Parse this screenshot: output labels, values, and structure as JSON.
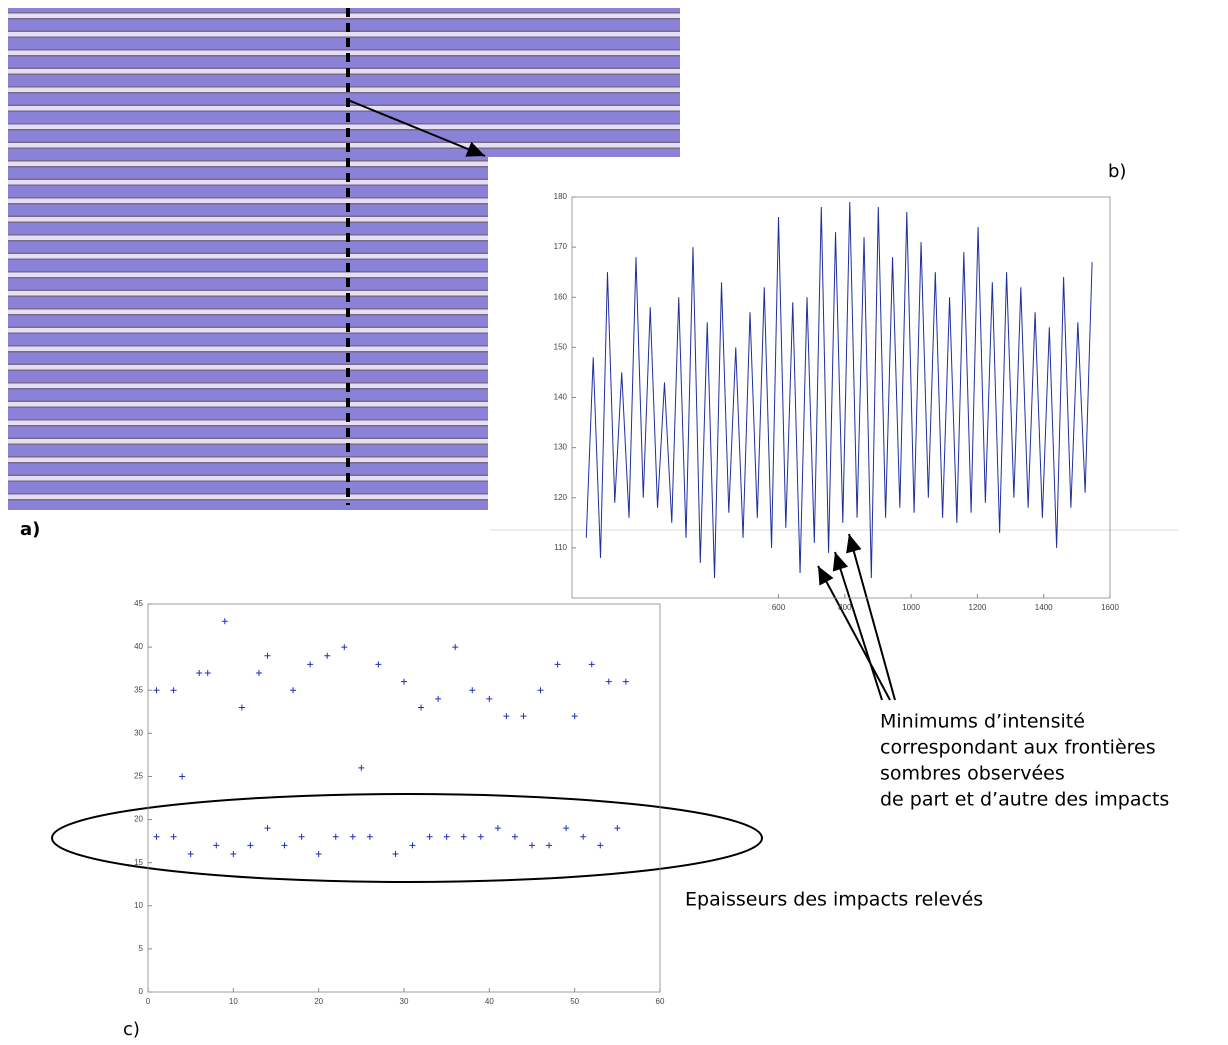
{
  "image": {
    "label": "a)"
  },
  "chart_data": [
    {
      "type": "line",
      "panel_label": "b)",
      "annotation": [
        "Minimums d’intensité",
        "correspondant aux frontières",
        "sombres observées",
        "de part et d’autre des impacts"
      ],
      "x": [
        20,
        41,
        63,
        84,
        106,
        127,
        149,
        170,
        192,
        213,
        235,
        256,
        278,
        299,
        321,
        342,
        364,
        385,
        407,
        428,
        450,
        471,
        493,
        514,
        536,
        557,
        579,
        600,
        622,
        643,
        665,
        686,
        708,
        729,
        751,
        772,
        794,
        815,
        837,
        858,
        880,
        901,
        923,
        944,
        966,
        987,
        1009,
        1030,
        1052,
        1073,
        1095,
        1116,
        1138,
        1159,
        1181,
        1202,
        1224,
        1245,
        1267,
        1288,
        1310,
        1331,
        1353,
        1374,
        1396,
        1417,
        1439,
        1460,
        1482,
        1503,
        1525,
        1546
      ],
      "values": [
        112,
        148,
        108,
        165,
        119,
        145,
        116,
        168,
        120,
        158,
        118,
        143,
        115,
        160,
        112,
        170,
        107,
        155,
        104,
        163,
        117,
        150,
        112,
        157,
        116,
        162,
        110,
        176,
        114,
        159,
        105,
        160,
        111,
        178,
        109,
        173,
        115,
        179,
        116,
        172,
        104,
        178,
        116,
        168,
        118,
        177,
        117,
        171,
        120,
        165,
        116,
        160,
        115,
        169,
        117,
        174,
        119,
        163,
        113,
        165,
        120,
        162,
        118,
        157,
        116,
        154,
        110,
        164,
        118,
        155,
        121,
        167
      ],
      "color": "#1f2f9e",
      "xlim": [
        -23,
        1600
      ],
      "ylim": [
        100,
        180
      ],
      "xticks": [
        600,
        800,
        1000,
        1200,
        1400,
        1600
      ],
      "yticks": [
        110,
        120,
        130,
        140,
        150,
        160,
        170,
        180
      ]
    },
    {
      "type": "scatter",
      "panel_label": "c)",
      "annotation": "Epaisseurs des impacts relevés",
      "series": [
        {
          "color": "#1f2fbf",
          "x": [
            1,
            3,
            4,
            6,
            7,
            9,
            11,
            13,
            14,
            17,
            19,
            21,
            23,
            25,
            27,
            30,
            32,
            34,
            36,
            38,
            40,
            42,
            44,
            46,
            48,
            50,
            52,
            54,
            56
          ],
          "values": [
            35,
            35,
            25,
            37,
            37,
            43,
            33,
            37,
            39,
            35,
            38,
            39,
            40,
            26,
            38,
            36,
            33,
            34,
            40,
            35,
            34,
            32,
            32,
            35,
            38,
            32,
            38,
            36,
            36
          ]
        },
        {
          "color": "#1f2fbf",
          "x": [
            1,
            3,
            5,
            8,
            10,
            12,
            14,
            16,
            18,
            20,
            22,
            24,
            26,
            29,
            31,
            33,
            35,
            37,
            39,
            41,
            43,
            45,
            47,
            49,
            51,
            53,
            55
          ],
          "values": [
            18,
            18,
            16,
            17,
            16,
            17,
            19,
            17,
            18,
            16,
            18,
            18,
            18,
            16,
            17,
            18,
            18,
            18,
            18,
            19,
            18,
            17,
            17,
            19,
            18,
            17,
            19
          ]
        }
      ],
      "xlim": [
        0,
        60
      ],
      "ylim": [
        0,
        45
      ],
      "xticks": [
        0,
        10,
        20,
        30,
        40,
        50,
        60
      ],
      "yticks": [
        0,
        5,
        10,
        15,
        20,
        25,
        30,
        35,
        40,
        45
      ]
    }
  ]
}
